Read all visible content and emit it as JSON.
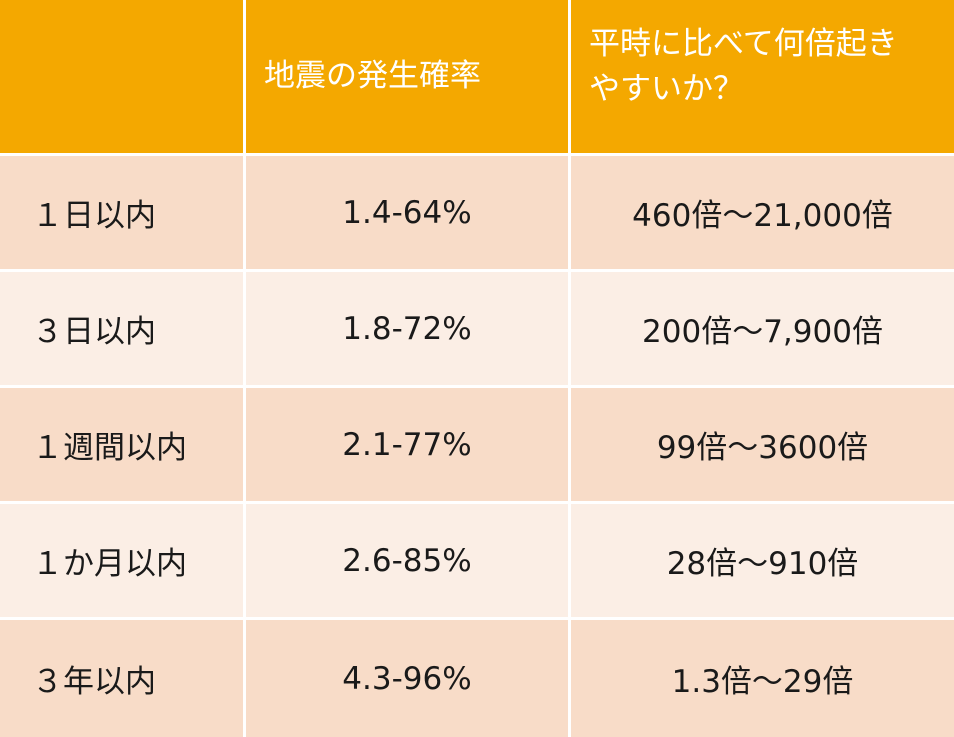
{
  "header": {
    "col1": "",
    "col2": "地震の発生確率",
    "col3": "平時に比べて何倍起きやすいか？"
  },
  "rows": [
    {
      "period": "１日以内",
      "probability": "1.4-64%",
      "ratio": "460倍～21,000倍"
    },
    {
      "period": "３日以内",
      "probability": "1.8-72%",
      "ratio": "200倍～7,900倍"
    },
    {
      "period": "１週間以内",
      "probability": "2.1-77%",
      "ratio": "99倍～3600倍"
    },
    {
      "period": "１か月以内",
      "probability": "2.6-85%",
      "ratio": "28倍～910倍"
    },
    {
      "period": "３年以内",
      "probability": "4.3-96%",
      "ratio": "1.3倍～29倍"
    }
  ],
  "colors": {
    "header_bg": "#f4a800",
    "row_dark_bg": "#f8dcc8",
    "row_light_bg": "#fbeee5"
  }
}
